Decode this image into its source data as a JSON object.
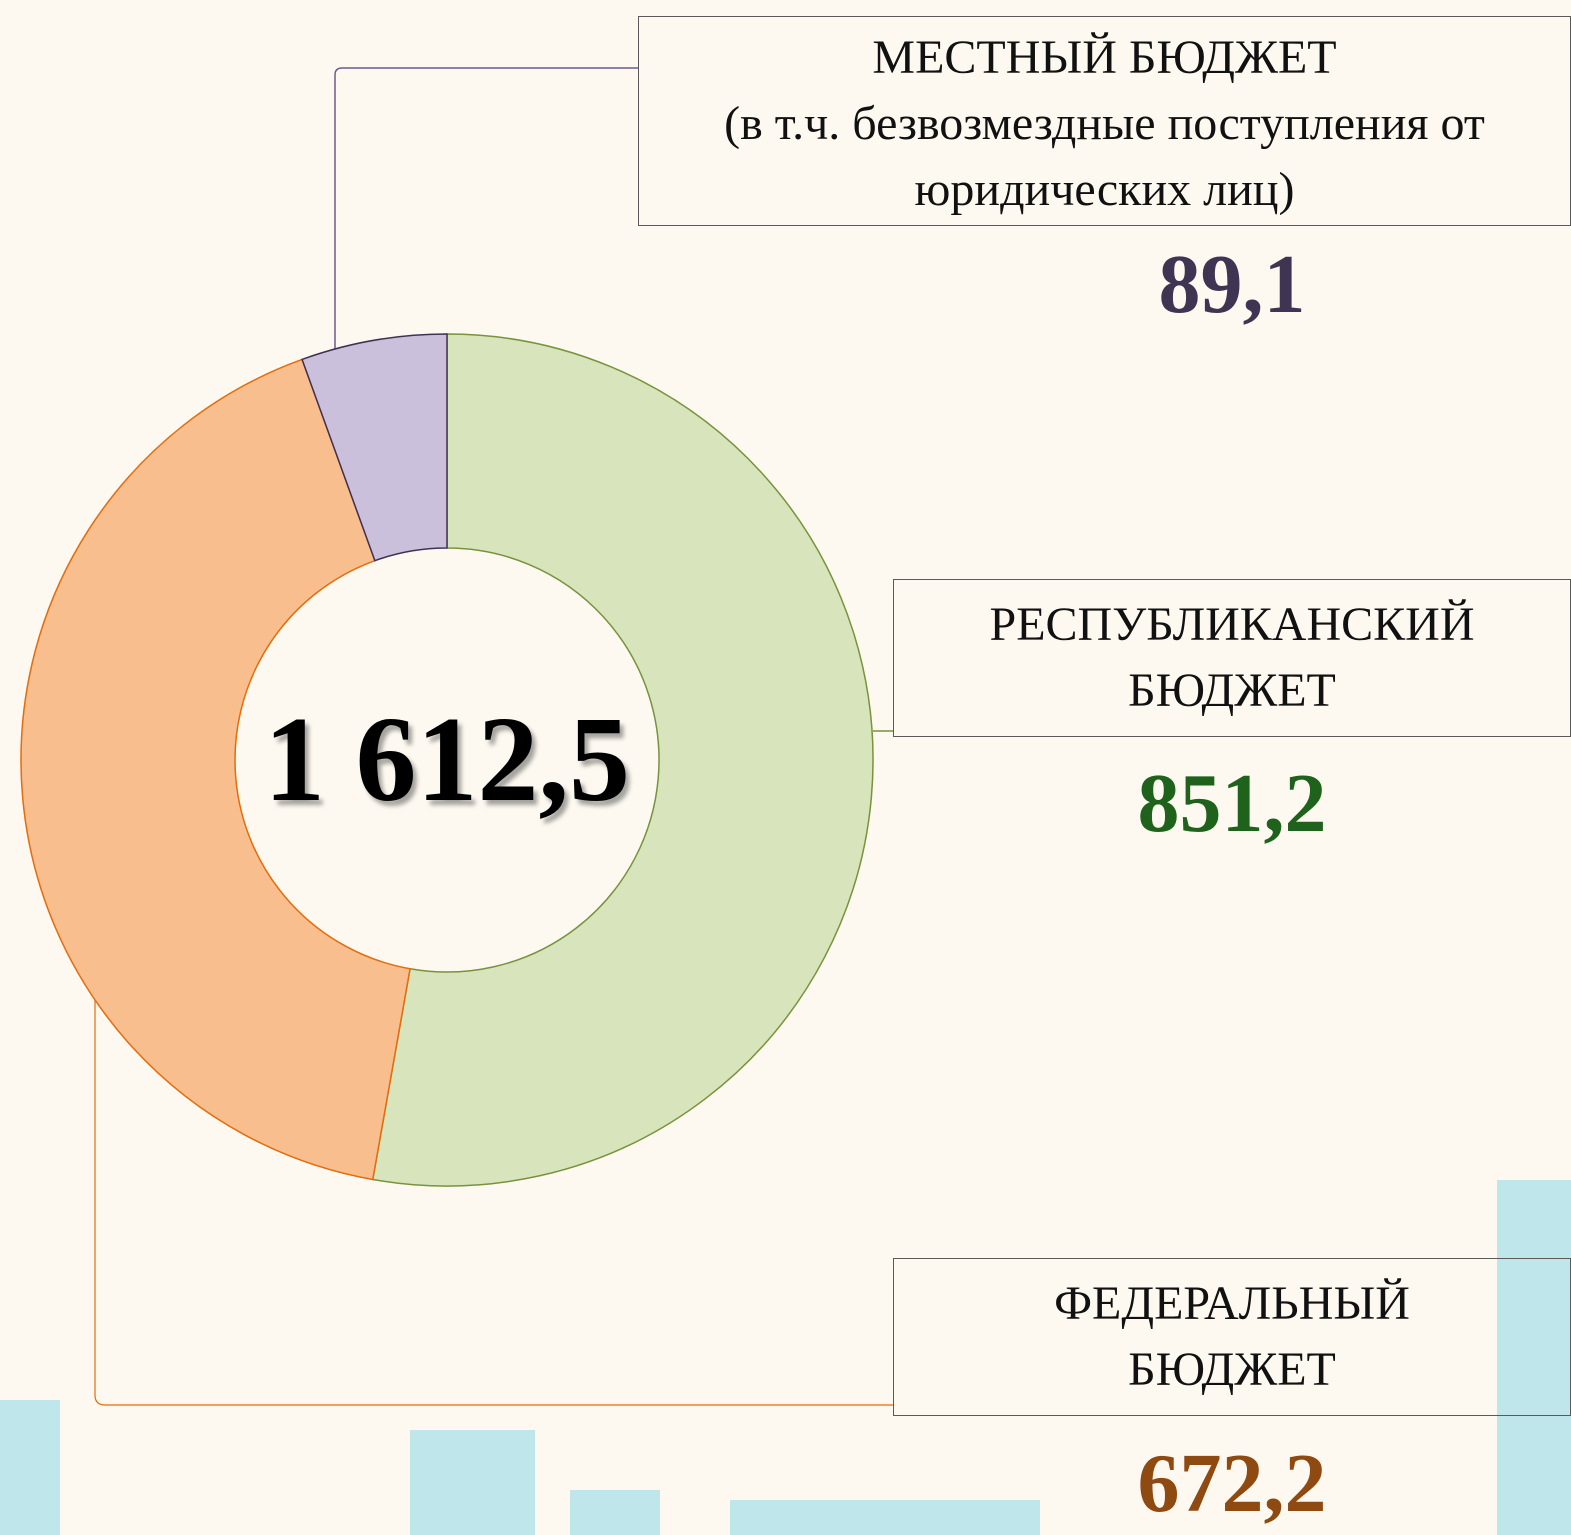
{
  "chart_data": {
    "type": "donut",
    "categories": [
      "РЕСПУБЛИКАНСКИЙ БЮДЖЕТ",
      "ФЕДЕРАЛЬНЫЙ БЮДЖЕТ",
      "МЕСТНЫЙ БЮДЖЕТ"
    ],
    "annotation": "(в т.ч. безвозмездные поступления от юридических лиц)",
    "values": [
      851.2,
      672.2,
      89.1
    ],
    "value_labels": [
      "851,2",
      "672,2",
      "89,1"
    ],
    "colors": [
      "#d8e4bc",
      "#f9be8e",
      "#cbc0dc"
    ],
    "edge_colors": [
      "#77933c",
      "#e46c0a",
      "#403152"
    ],
    "label_colors": [
      "#1e621b",
      "#8f4a12",
      "#3f3451"
    ],
    "total": {
      "value": 1612.5,
      "label": "1 612,5"
    }
  }
}
